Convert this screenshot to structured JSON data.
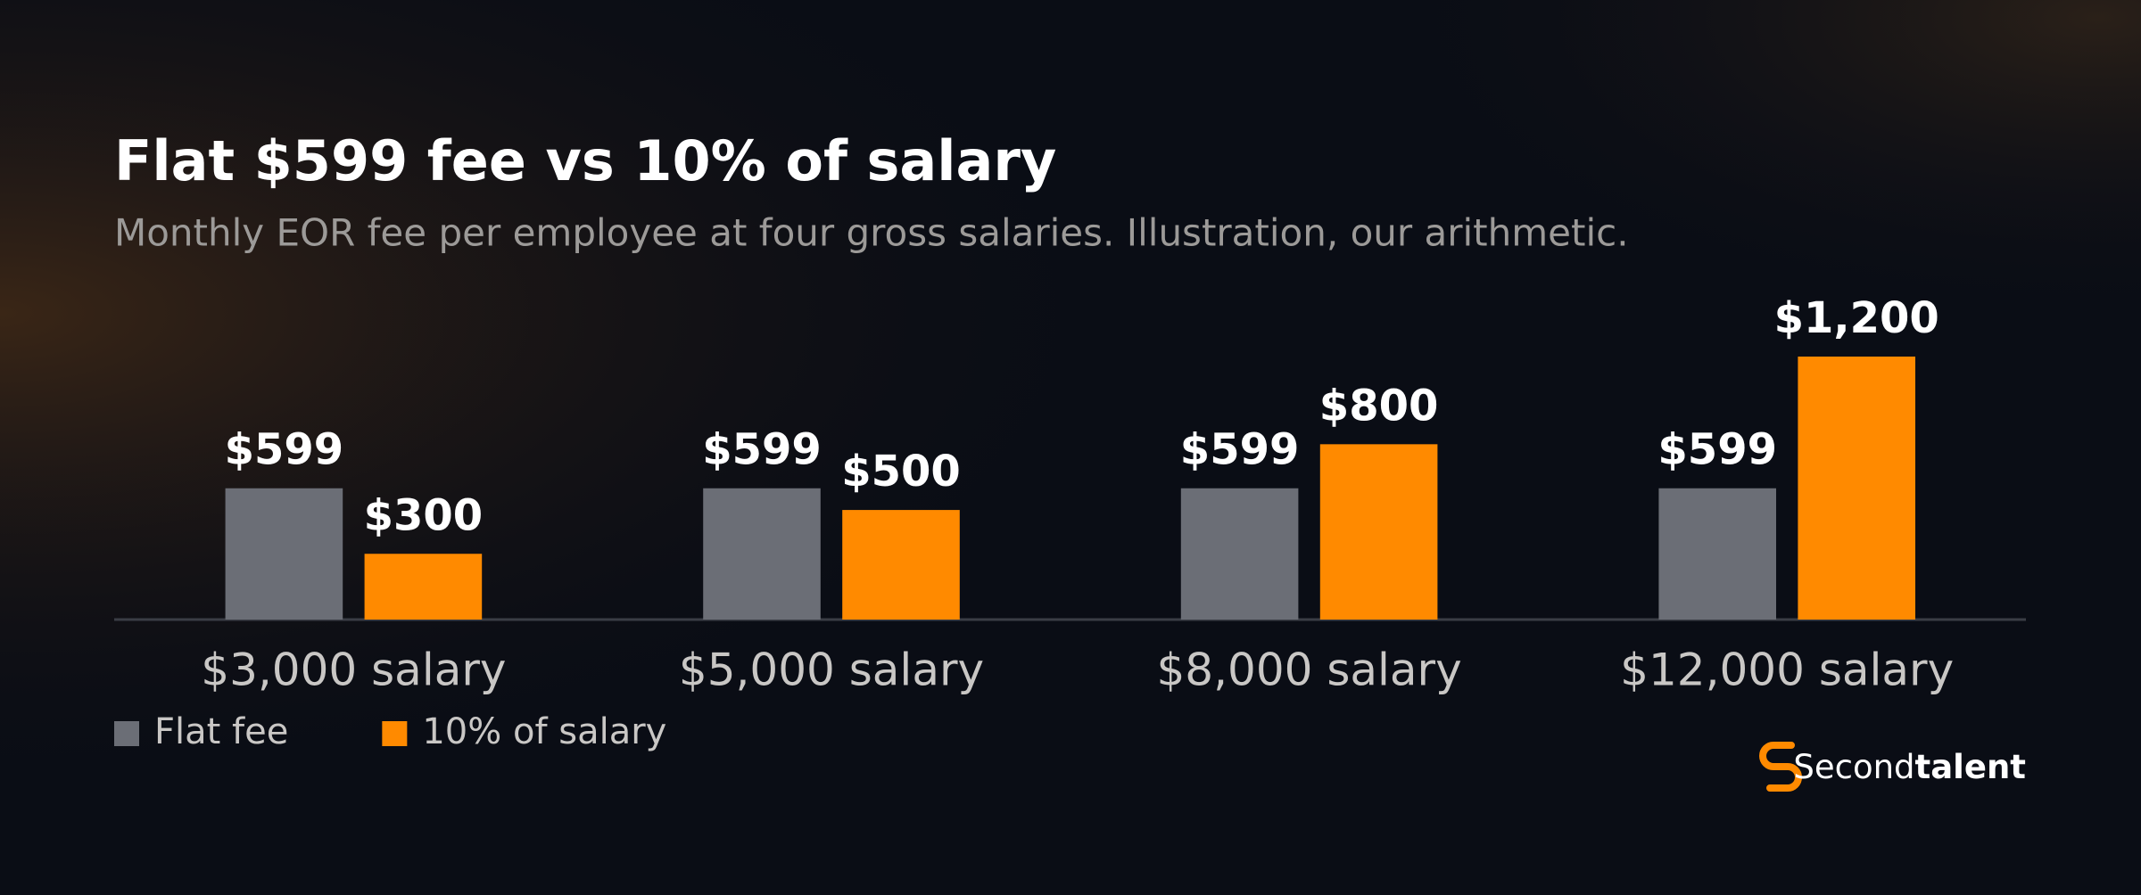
{
  "chart_data": {
    "type": "bar",
    "title": "Flat $599 fee vs 10% of salary",
    "subtitle": "Monthly EOR fee per employee at four gross salaries. Illustration, our arithmetic.",
    "categories": [
      "$3,000 salary",
      "$5,000 salary",
      "$8,000 salary",
      "$12,000 salary"
    ],
    "series": [
      {
        "name": "Flat fee",
        "color": "#6b6e76",
        "values": [
          599,
          599,
          599,
          599
        ],
        "value_labels": [
          "$599",
          "$599",
          "$599",
          "$599"
        ]
      },
      {
        "name": "10% of salary",
        "color": "#ff8a00",
        "values": [
          300,
          500,
          800,
          1200
        ],
        "value_labels": [
          "$300",
          "$500",
          "$800",
          "$1,200"
        ]
      }
    ],
    "legend": "bottom-left"
  },
  "logo": {
    "light": "Second",
    "bold": "talent"
  }
}
